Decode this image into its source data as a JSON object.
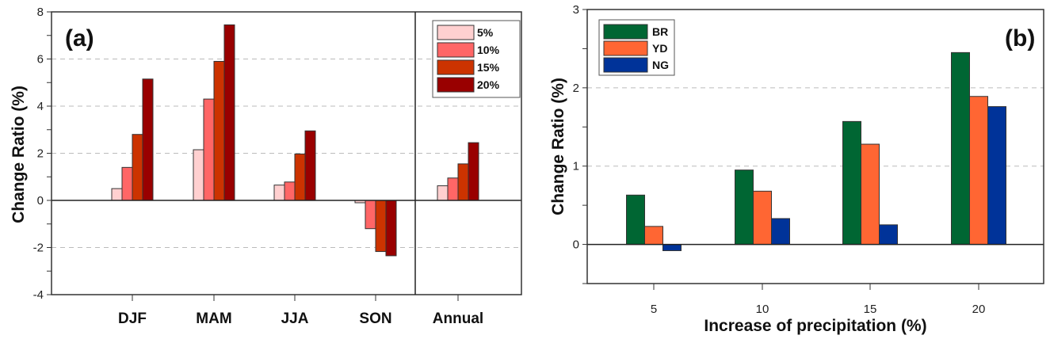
{
  "chart_data": [
    {
      "type": "bar",
      "panel_label": "(a)",
      "ylabel": "Change Ratio (%)",
      "xlabel": "",
      "ylim": [
        -4,
        8
      ],
      "yticks": [
        "8",
        "6",
        "4",
        "2",
        "0",
        "-2",
        "-4"
      ],
      "ytick_values": [
        8,
        6,
        4,
        2,
        0,
        -2,
        -4
      ],
      "grid": "dashed at 6,4,2,-2",
      "legend_placement": "top-right",
      "categories": [
        "DJF",
        "MAM",
        "JJA",
        "SON",
        "Annual"
      ],
      "series": [
        {
          "name": "5%",
          "color": "#ffd0d0",
          "values": [
            0.5,
            2.15,
            0.65,
            -0.1,
            0.62
          ]
        },
        {
          "name": "10%",
          "color": "#ff6666",
          "values": [
            1.4,
            4.3,
            0.78,
            -1.2,
            0.95
          ]
        },
        {
          "name": "15%",
          "color": "#cc3300",
          "values": [
            2.8,
            5.9,
            1.97,
            -2.17,
            1.55
          ]
        },
        {
          "name": "20%",
          "color": "#990000",
          "values": [
            5.15,
            7.45,
            2.95,
            -2.35,
            2.45
          ]
        }
      ]
    },
    {
      "type": "bar",
      "panel_label": "(b)",
      "ylabel": "Change Ratio (%)",
      "xlabel": "Increase of precipitation (%)",
      "ylim": [
        -0.5,
        3
      ],
      "yticks": [
        "3",
        "2",
        "1",
        "0"
      ],
      "ytick_values": [
        3,
        2,
        1,
        0
      ],
      "grid": "dashed at 2,1",
      "legend_placement": "top-left",
      "categories": [
        "5",
        "10",
        "15",
        "20"
      ],
      "series": [
        {
          "name": "BR",
          "color": "#006633",
          "values": [
            0.63,
            0.95,
            1.57,
            2.45
          ]
        },
        {
          "name": "YD",
          "color": "#ff6633",
          "values": [
            0.23,
            0.68,
            1.28,
            1.89
          ]
        },
        {
          "name": "NG",
          "color": "#003399",
          "values": [
            -0.08,
            0.33,
            0.25,
            1.76
          ]
        }
      ]
    }
  ]
}
